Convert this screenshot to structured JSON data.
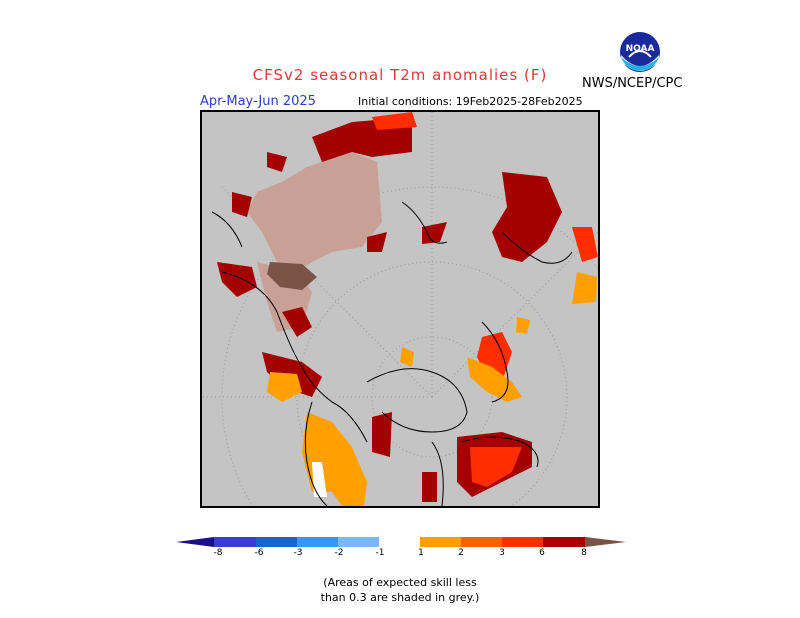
{
  "header": {
    "title": "CFSv2 seasonal T2m anomalies (F)",
    "agency": "NWS/NCEP/CPC",
    "season": "Apr-May-Jun 2025",
    "initial_conditions": "Initial conditions: 19Feb2025-28Feb2025"
  },
  "logo": {
    "text": "NOAA"
  },
  "colorbar": {
    "labels": [
      "-8",
      "-6",
      "-3",
      "-2",
      "-1",
      "1",
      "2",
      "3",
      "6",
      "8"
    ],
    "colors": [
      "#1a0f8c",
      "#3c3cd0",
      "#1e64c8",
      "#3c96f0",
      "#78b9fa",
      "#ffffff",
      "#ffa000",
      "#ff5f00",
      "#ff2d00",
      "#a50000",
      "#c8a096",
      "#7a5246"
    ]
  },
  "note": {
    "line1": "(Areas of expected skill less",
    "line2": "than 0.3 are shaded in grey.)"
  }
}
